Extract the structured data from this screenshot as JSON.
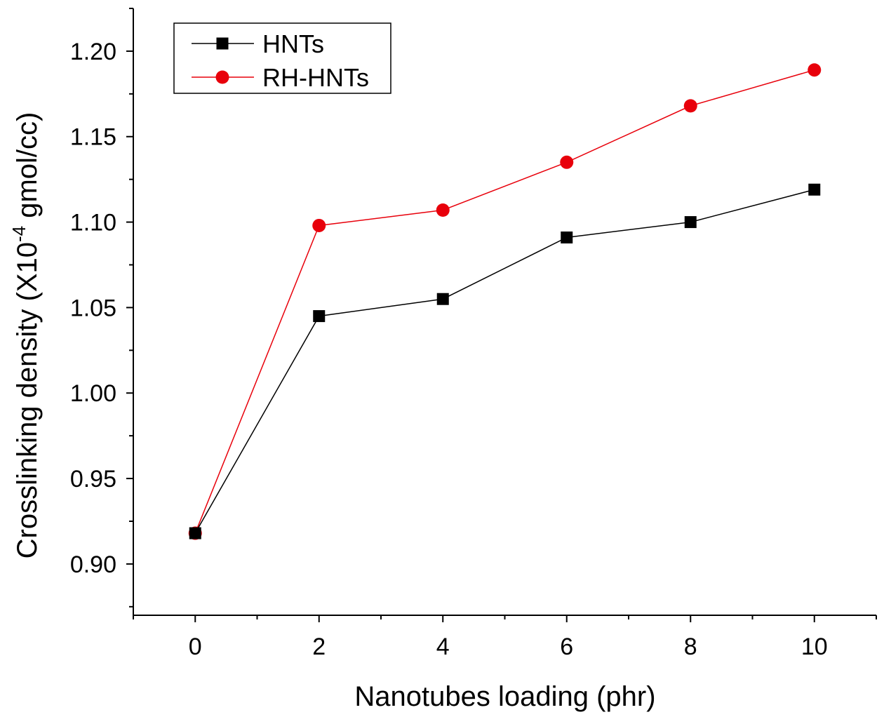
{
  "chart_data": {
    "type": "line",
    "title": "",
    "xlabel": "Nanotubes loading (phr)",
    "ylabel": {
      "prefix": "Crosslinking density (X10",
      "superscript": "-4",
      "suffix": " gmol/cc)"
    },
    "x": [
      0,
      2,
      4,
      6,
      8,
      10
    ],
    "xlim": [
      -1,
      11
    ],
    "ylim": [
      0.87,
      1.225
    ],
    "x_ticks": [
      "0",
      "2",
      "4",
      "6",
      "8",
      "10"
    ],
    "y_ticks": [
      "0.90",
      "0.95",
      "1.00",
      "1.05",
      "1.10",
      "1.15",
      "1.20"
    ],
    "grid": false,
    "legend_position": "top-left",
    "series": [
      {
        "name": "HNTs",
        "values": [
          0.918,
          1.045,
          1.055,
          1.091,
          1.1,
          1.119
        ],
        "color": "#000000",
        "marker": "square"
      },
      {
        "name": "RH-HNTs",
        "values": [
          0.918,
          1.098,
          1.107,
          1.135,
          1.168,
          1.189
        ],
        "color": "#e8000b",
        "marker": "circle"
      }
    ]
  }
}
